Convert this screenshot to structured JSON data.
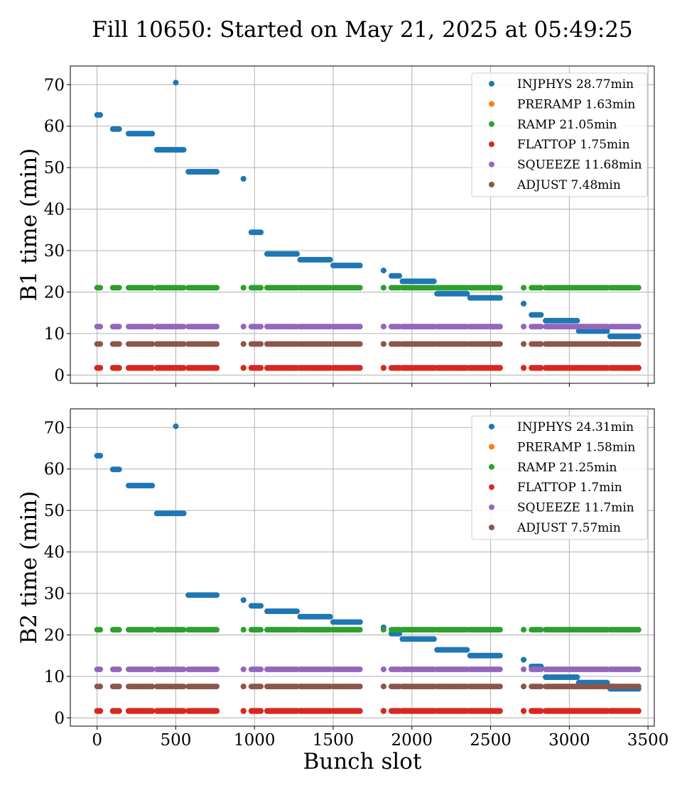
{
  "title": "Fill 10650: Started on May 21, 2025 at 05:49:25",
  "colors": {
    "INJPHYS": "#1f77b4",
    "PRERAMP": "#ff7f0e",
    "RAMP": "#2ca02c",
    "FLATTOP": "#d62728",
    "SQUEEZE": "#9467bd",
    "ADJUST": "#8c564b"
  },
  "chart_data": [
    {
      "type": "scatter",
      "ylabel": "B1 time (min)",
      "xlabel": "",
      "xlim": [
        -170,
        3540
      ],
      "ylim": [
        -2,
        74.5
      ],
      "xticks": [
        0,
        500,
        1000,
        1500,
        2000,
        2500,
        3000,
        3500
      ],
      "yticks": [
        0,
        10,
        20,
        30,
        40,
        50,
        60,
        70
      ],
      "show_xtick_labels": false,
      "grid": true,
      "legend_position": "top-right",
      "legend": [
        "INJPHYS 28.77min",
        "PRERAMP 1.63min",
        "RAMP 21.05min",
        "FLATTOP 1.75min",
        "SQUEEZE 11.68min",
        "ADJUST 7.48min"
      ],
      "trains": [
        [
          0,
          20
        ],
        [
          100,
          140
        ],
        [
          200,
          350
        ],
        [
          380,
          550
        ],
        [
          580,
          760
        ],
        [
          930,
          930
        ],
        [
          980,
          1040
        ],
        [
          1080,
          1270
        ],
        [
          1290,
          1480
        ],
        [
          1500,
          1670
        ],
        [
          1820,
          1820
        ],
        [
          1870,
          1920
        ],
        [
          1940,
          2140
        ],
        [
          2160,
          2350
        ],
        [
          2370,
          2560
        ],
        [
          2710,
          2710
        ],
        [
          2760,
          2820
        ],
        [
          2850,
          3050
        ],
        [
          3060,
          3240
        ],
        [
          3260,
          3440
        ]
      ],
      "series": [
        {
          "name": "INJPHYS 28.77min",
          "key": "INJPHYS",
          "values": [
            62.7,
            59.3,
            58.2,
            54.3,
            49.0,
            47.3,
            34.4,
            29.2,
            27.8,
            26.4,
            25.2,
            23.9,
            22.6,
            19.6,
            18.6,
            17.2,
            14.5,
            13.1,
            10.6,
            9.3
          ],
          "extra_points": [
            [
              500,
              70.5
            ]
          ]
        },
        {
          "name": "PRERAMP 1.63min",
          "key": "PRERAMP",
          "constant": 1.63
        },
        {
          "name": "RAMP 21.05min",
          "key": "RAMP",
          "constant": 21.05
        },
        {
          "name": "FLATTOP 1.75min",
          "key": "FLATTOP",
          "constant": 1.75
        },
        {
          "name": "SQUEEZE 11.68min",
          "key": "SQUEEZE",
          "constant": 11.68
        },
        {
          "name": "ADJUST 7.48min",
          "key": "ADJUST",
          "constant": 7.48
        }
      ]
    },
    {
      "type": "scatter",
      "ylabel": "B2 time (min)",
      "xlabel": "Bunch slot",
      "xlim": [
        -170,
        3540
      ],
      "ylim": [
        -2,
        74.5
      ],
      "xticks": [
        0,
        500,
        1000,
        1500,
        2000,
        2500,
        3000,
        3500
      ],
      "yticks": [
        0,
        10,
        20,
        30,
        40,
        50,
        60,
        70
      ],
      "show_xtick_labels": true,
      "grid": true,
      "legend_position": "top-right",
      "legend": [
        "INJPHYS 24.31min",
        "PRERAMP 1.58min",
        "RAMP 21.25min",
        "FLATTOP 1.7min",
        "SQUEEZE 11.7min",
        "ADJUST 7.57min"
      ],
      "trains": [
        [
          0,
          20
        ],
        [
          100,
          140
        ],
        [
          200,
          350
        ],
        [
          380,
          550
        ],
        [
          580,
          760
        ],
        [
          930,
          930
        ],
        [
          980,
          1040
        ],
        [
          1080,
          1270
        ],
        [
          1290,
          1480
        ],
        [
          1500,
          1670
        ],
        [
          1820,
          1820
        ],
        [
          1870,
          1920
        ],
        [
          1940,
          2140
        ],
        [
          2160,
          2350
        ],
        [
          2370,
          2560
        ],
        [
          2710,
          2710
        ],
        [
          2760,
          2820
        ],
        [
          2850,
          3050
        ],
        [
          3060,
          3240
        ],
        [
          3260,
          3440
        ]
      ],
      "series": [
        {
          "name": "INJPHYS 24.31min",
          "key": "INJPHYS",
          "values": [
            63.2,
            59.9,
            56.0,
            49.3,
            29.6,
            28.4,
            27.0,
            25.7,
            24.4,
            23.1,
            21.8,
            20.3,
            19.0,
            16.4,
            15.0,
            14.0,
            12.4,
            9.8,
            8.5,
            7.0
          ],
          "extra_points": [
            [
              500,
              70.3
            ]
          ]
        },
        {
          "name": "PRERAMP 1.58min",
          "key": "PRERAMP",
          "constant": 1.58
        },
        {
          "name": "RAMP 21.25min",
          "key": "RAMP",
          "constant": 21.25
        },
        {
          "name": "FLATTOP 1.7min",
          "key": "FLATTOP",
          "constant": 1.7
        },
        {
          "name": "SQUEEZE 11.7min",
          "key": "SQUEEZE",
          "constant": 11.7
        },
        {
          "name": "ADJUST 7.57min",
          "key": "ADJUST",
          "constant": 7.57
        }
      ]
    }
  ]
}
